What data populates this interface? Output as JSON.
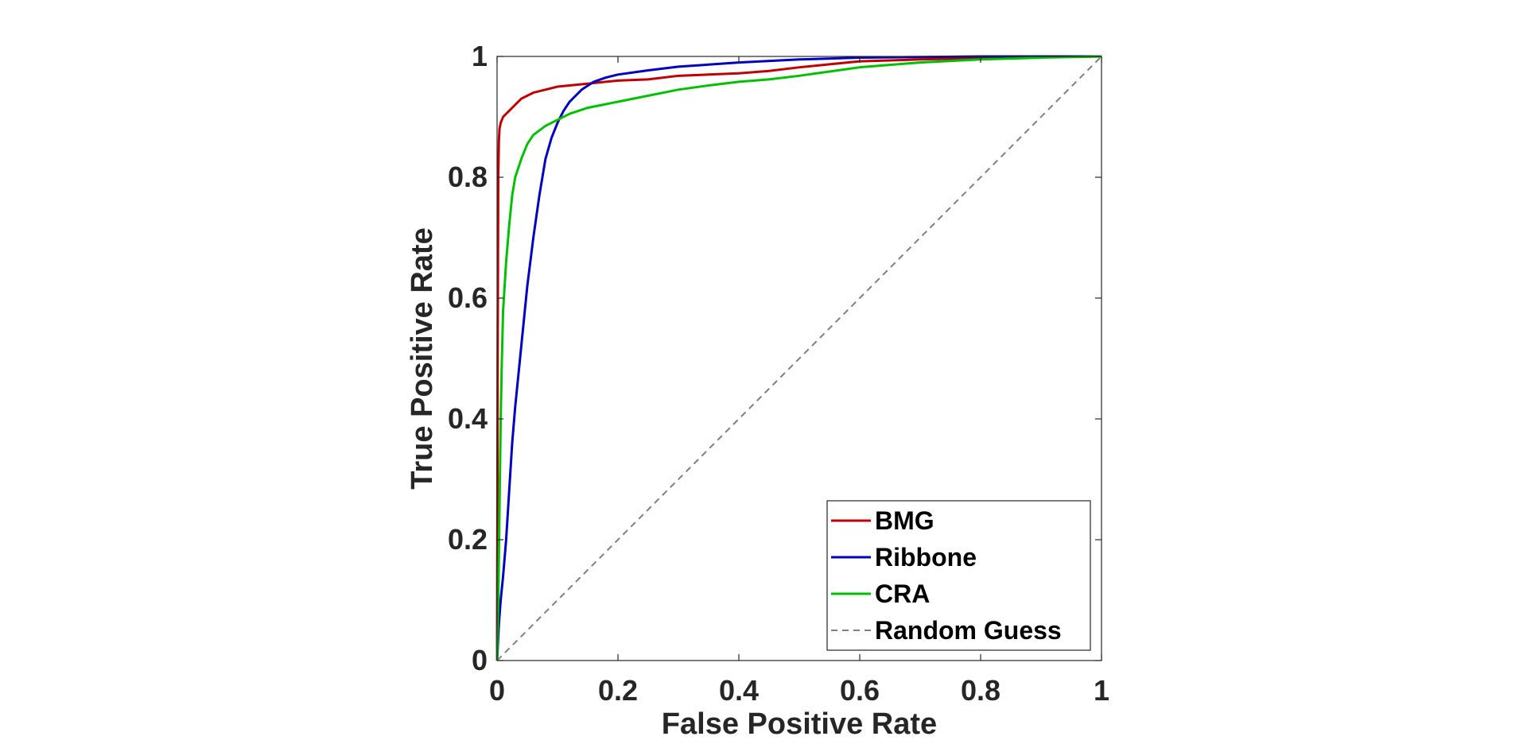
{
  "chart_data": {
    "type": "line",
    "title": "",
    "xlabel": "False Positive Rate",
    "ylabel": "True Positive Rate",
    "xlim": [
      0,
      1
    ],
    "ylim": [
      0,
      1
    ],
    "xticks": [
      0,
      0.2,
      0.4,
      0.6,
      0.8,
      1
    ],
    "yticks": [
      0,
      0.2,
      0.4,
      0.6,
      0.8,
      1
    ],
    "xtick_labels": [
      "0",
      "0.2",
      "0.4",
      "0.6",
      "0.8",
      "1"
    ],
    "ytick_labels": [
      "0",
      "0.2",
      "0.4",
      "0.6",
      "0.8",
      "1"
    ],
    "grid": false,
    "legend_position": "bottom-right",
    "series": [
      {
        "name": "BMG",
        "color": "#c00000",
        "style": "solid",
        "x": [
          0,
          0.001,
          0.002,
          0.003,
          0.004,
          0.006,
          0.01,
          0.015,
          0.02,
          0.03,
          0.04,
          0.05,
          0.06,
          0.08,
          0.1,
          0.12,
          0.15,
          0.2,
          0.25,
          0.3,
          0.35,
          0.4,
          0.45,
          0.5,
          0.55,
          0.6,
          0.7,
          0.8,
          0.9,
          1
        ],
        "y": [
          0,
          0.5,
          0.8,
          0.86,
          0.88,
          0.89,
          0.9,
          0.905,
          0.91,
          0.92,
          0.93,
          0.935,
          0.94,
          0.945,
          0.95,
          0.952,
          0.955,
          0.96,
          0.962,
          0.968,
          0.97,
          0.972,
          0.976,
          0.982,
          0.987,
          0.992,
          0.995,
          0.997,
          0.999,
          1
        ]
      },
      {
        "name": "Ribbone",
        "color": "#0000c0",
        "style": "solid",
        "x": [
          0,
          0.003,
          0.006,
          0.01,
          0.015,
          0.02,
          0.025,
          0.03,
          0.04,
          0.05,
          0.06,
          0.07,
          0.08,
          0.09,
          0.1,
          0.11,
          0.12,
          0.14,
          0.16,
          0.18,
          0.2,
          0.25,
          0.3,
          0.4,
          0.5,
          0.6,
          0.7,
          0.8,
          0.9,
          1
        ],
        "y": [
          0,
          0.06,
          0.1,
          0.14,
          0.2,
          0.28,
          0.36,
          0.42,
          0.52,
          0.62,
          0.7,
          0.77,
          0.83,
          0.865,
          0.89,
          0.91,
          0.925,
          0.945,
          0.958,
          0.965,
          0.97,
          0.977,
          0.983,
          0.99,
          0.995,
          0.998,
          0.999,
          1,
          1,
          1
        ]
      },
      {
        "name": "CRA",
        "color": "#00c000",
        "style": "solid",
        "x": [
          0,
          0.002,
          0.004,
          0.006,
          0.008,
          0.01,
          0.015,
          0.02,
          0.025,
          0.03,
          0.04,
          0.05,
          0.06,
          0.08,
          0.1,
          0.12,
          0.15,
          0.2,
          0.25,
          0.3,
          0.35,
          0.4,
          0.45,
          0.5,
          0.55,
          0.6,
          0.7,
          0.8,
          0.9,
          1
        ],
        "y": [
          0,
          0.1,
          0.25,
          0.4,
          0.5,
          0.58,
          0.66,
          0.72,
          0.77,
          0.8,
          0.83,
          0.855,
          0.87,
          0.885,
          0.895,
          0.905,
          0.915,
          0.925,
          0.935,
          0.945,
          0.952,
          0.958,
          0.962,
          0.968,
          0.975,
          0.982,
          0.99,
          0.995,
          0.998,
          1
        ]
      },
      {
        "name": "Random Guess",
        "color": "#7f7f7f",
        "style": "dashed",
        "x": [
          0,
          1
        ],
        "y": [
          0,
          1
        ]
      }
    ]
  }
}
